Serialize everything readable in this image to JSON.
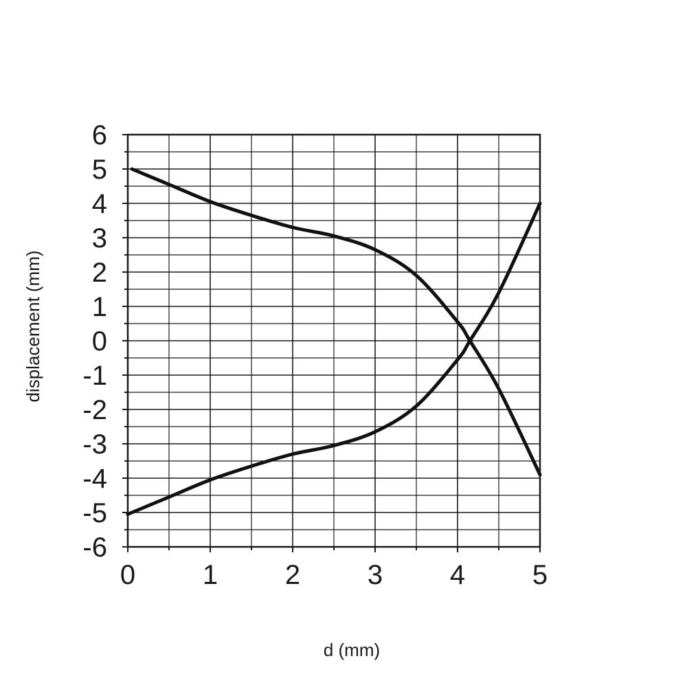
{
  "chart_data": {
    "type": "line",
    "title": "",
    "xlabel": "d (mm)",
    "ylabel": "displacement (mm)",
    "xlim": [
      0,
      5
    ],
    "ylim": [
      -6,
      6
    ],
    "x_ticks": [
      "0",
      "1",
      "2",
      "3",
      "4",
      "5"
    ],
    "y_ticks": [
      "6",
      "5",
      "4",
      "3",
      "2",
      "1",
      "0",
      "-1",
      "-2",
      "-3",
      "-4",
      "-5",
      "-6"
    ],
    "grid": true,
    "legend": "none",
    "line_color": "#111111",
    "series": [
      {
        "x": [
          0.05,
          0.5,
          1.0,
          1.5,
          2.0,
          2.5,
          3.0,
          3.5,
          4.0,
          4.15,
          4.5,
          5.0
        ],
        "y": [
          5.0,
          4.55,
          4.05,
          3.65,
          3.3,
          3.05,
          2.65,
          1.9,
          0.55,
          0.0,
          -1.4,
          -3.9
        ]
      },
      {
        "x": [
          0.0,
          0.5,
          1.0,
          1.5,
          2.0,
          2.5,
          3.0,
          3.5,
          4.0,
          4.15,
          4.5,
          5.0
        ],
        "y": [
          -5.05,
          -4.55,
          -4.05,
          -3.65,
          -3.3,
          -3.05,
          -2.65,
          -1.9,
          -0.55,
          0.0,
          1.4,
          4.0
        ]
      }
    ]
  }
}
